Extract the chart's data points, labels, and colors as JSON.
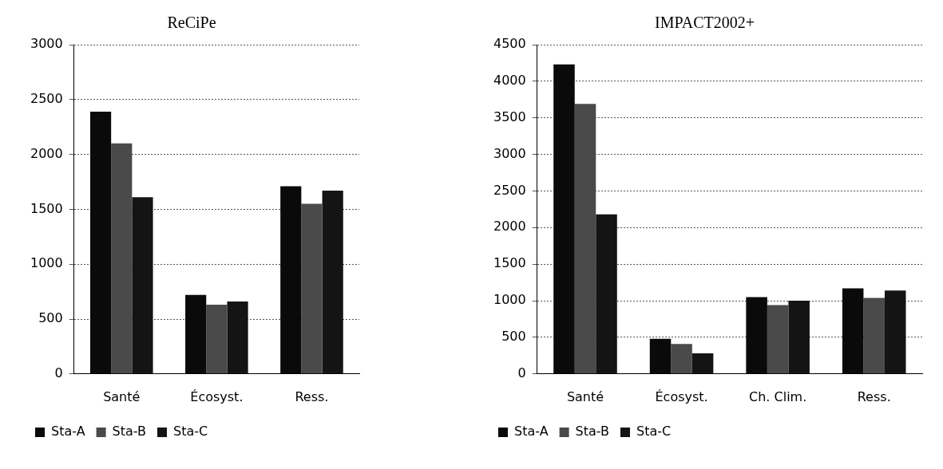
{
  "chart_data": [
    {
      "type": "bar",
      "title": "ReCiPe",
      "categories": [
        "Santé",
        "Écosyst.",
        "Ress."
      ],
      "series": [
        {
          "name": "Sta-A",
          "color": "#0a0a0a",
          "values": [
            2390,
            720,
            1710
          ]
        },
        {
          "name": "Sta-B",
          "color": "#4a4a4a",
          "values": [
            2100,
            630,
            1550
          ]
        },
        {
          "name": "Sta-C",
          "color": "#141414",
          "values": [
            1610,
            660,
            1670
          ]
        }
      ],
      "ylim": [
        0,
        3000
      ],
      "yticks": [
        0,
        500,
        1000,
        1500,
        2000,
        2500,
        3000
      ],
      "grid": "y",
      "legend": "bottom"
    },
    {
      "type": "bar",
      "title": "IMPACT2002+",
      "categories": [
        "Santé",
        "Écosyst.",
        "Ch. Clim.",
        "Ress."
      ],
      "series": [
        {
          "name": "Sta-A",
          "color": "#0a0a0a",
          "values": [
            4230,
            480,
            1050,
            1170
          ]
        },
        {
          "name": "Sta-B",
          "color": "#4a4a4a",
          "values": [
            3690,
            410,
            940,
            1040
          ]
        },
        {
          "name": "Sta-C",
          "color": "#141414",
          "values": [
            2180,
            280,
            1000,
            1140
          ]
        }
      ],
      "ylim": [
        0,
        4500
      ],
      "yticks": [
        0,
        500,
        1000,
        1500,
        2000,
        2500,
        3000,
        3500,
        4000,
        4500
      ],
      "grid": "y",
      "legend": "bottom"
    }
  ]
}
